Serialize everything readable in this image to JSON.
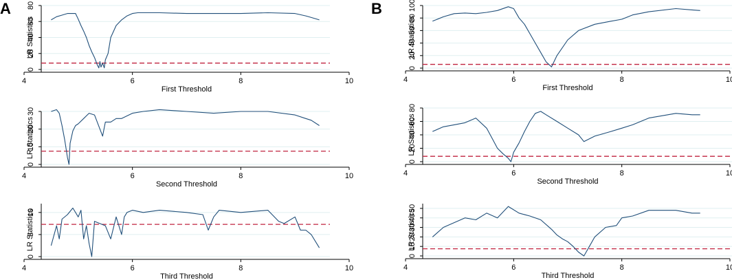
{
  "colors": {
    "series": "#1f4e79",
    "threshold_line": "#c0233f",
    "grid": "#dfeff0",
    "axis": "#000000"
  },
  "chart_data": [
    {
      "type": "line",
      "panel": "A",
      "xlabel": "First Threshold",
      "ylabel": "LR Statistics",
      "xlim": [
        4,
        10
      ],
      "ylim": [
        0,
        80
      ],
      "x_ticks": [
        "4",
        "6",
        "8",
        "10"
      ],
      "y_ticks": [
        "0",
        "20",
        "40",
        "60",
        "80"
      ],
      "critical_value": 8,
      "series": [
        {
          "name": "LR",
          "x": [
            4.5,
            4.6,
            4.7,
            4.8,
            4.95,
            5.0,
            5.05,
            5.1,
            5.15,
            5.2,
            5.25,
            5.3,
            5.35,
            5.38,
            5.4,
            5.42,
            5.45,
            5.48,
            5.5,
            5.55,
            5.6,
            5.7,
            5.8,
            5.9,
            6.0,
            6.1,
            6.2,
            6.5,
            7.0,
            7.5,
            8.0,
            8.5,
            9.0,
            9.2,
            9.3,
            9.45
          ],
          "y": [
            62,
            66,
            68,
            70,
            70,
            63,
            55,
            48,
            40,
            30,
            22,
            15,
            6,
            2,
            10,
            3,
            8,
            2,
            12,
            20,
            40,
            55,
            62,
            67,
            70,
            71,
            71,
            71,
            70,
            70,
            70,
            71,
            70,
            67,
            65,
            62
          ]
        }
      ]
    },
    {
      "type": "line",
      "panel": "B",
      "xlabel": "First Threshold",
      "ylabel": "LR Statistics",
      "xlim": [
        4,
        10
      ],
      "ylim": [
        0,
        100
      ],
      "x_ticks": [
        "4",
        "6",
        "8",
        "10"
      ],
      "y_ticks": [
        "0",
        "20",
        "40",
        "60",
        "80",
        "100"
      ],
      "critical_value": 6,
      "series": [
        {
          "name": "LR",
          "x": [
            4.5,
            4.7,
            4.9,
            5.1,
            5.3,
            5.5,
            5.7,
            5.9,
            6.0,
            6.1,
            6.2,
            6.3,
            6.4,
            6.5,
            6.6,
            6.7,
            6.8,
            7.0,
            7.2,
            7.5,
            7.8,
            8.0,
            8.2,
            8.5,
            9.0,
            9.3,
            9.45
          ],
          "y": [
            75,
            82,
            87,
            88,
            87,
            89,
            92,
            98,
            95,
            80,
            70,
            55,
            40,
            25,
            10,
            2,
            20,
            45,
            60,
            70,
            75,
            78,
            85,
            90,
            95,
            93,
            92
          ]
        }
      ]
    },
    {
      "type": "line",
      "panel": "A",
      "xlabel": "Second Threshold",
      "ylabel": "LR Statistics",
      "xlim": [
        4,
        10
      ],
      "ylim": [
        0,
        30
      ],
      "x_ticks": [
        "4",
        "6",
        "8",
        "10"
      ],
      "y_ticks": [
        "0",
        "10",
        "20",
        "30"
      ],
      "critical_value": 7.5,
      "series": [
        {
          "name": "LR",
          "x": [
            4.5,
            4.6,
            4.65,
            4.7,
            4.75,
            4.8,
            4.83,
            4.85,
            4.9,
            4.95,
            5.0,
            5.1,
            5.2,
            5.3,
            5.4,
            5.45,
            5.5,
            5.6,
            5.7,
            5.8,
            6.0,
            6.2,
            6.5,
            7.0,
            7.5,
            8.0,
            8.5,
            9.0,
            9.2,
            9.3,
            9.45
          ],
          "y": [
            30,
            31,
            29,
            22,
            14,
            4,
            0,
            12,
            19,
            22,
            23,
            26,
            29,
            28,
            20,
            16,
            24,
            24,
            26,
            26,
            29,
            30,
            31,
            30,
            29,
            30,
            30,
            28,
            26,
            25,
            22
          ]
        }
      ]
    },
    {
      "type": "line",
      "panel": "B",
      "xlabel": "Second Threshold",
      "ylabel": "LR Statistics",
      "xlim": [
        4,
        10
      ],
      "ylim": [
        0,
        80
      ],
      "x_ticks": [
        "4",
        "6",
        "8",
        "10"
      ],
      "y_ticks": [
        "0",
        "20",
        "40",
        "60",
        "80"
      ],
      "critical_value": 8,
      "series": [
        {
          "name": "LR",
          "x": [
            4.5,
            4.7,
            4.9,
            5.1,
            5.3,
            5.5,
            5.6,
            5.7,
            5.8,
            5.9,
            5.95,
            6.0,
            6.1,
            6.2,
            6.3,
            6.4,
            6.5,
            6.6,
            6.8,
            7.0,
            7.2,
            7.3,
            7.5,
            7.8,
            8.0,
            8.2,
            8.5,
            9.0,
            9.3,
            9.45
          ],
          "y": [
            45,
            52,
            55,
            58,
            65,
            50,
            35,
            20,
            12,
            5,
            0,
            14,
            28,
            45,
            60,
            72,
            75,
            70,
            60,
            50,
            40,
            30,
            38,
            45,
            50,
            55,
            65,
            72,
            70,
            70
          ]
        }
      ]
    },
    {
      "type": "line",
      "panel": "A",
      "xlabel": "Third Threshold",
      "ylabel": "LR Statistics",
      "xlim": [
        4,
        10
      ],
      "ylim": [
        0,
        12
      ],
      "x_ticks": [
        "4",
        "6",
        "8",
        "10"
      ],
      "y_ticks": [
        "0",
        "5",
        "10"
      ],
      "critical_value": 7.3,
      "series": [
        {
          "name": "LR",
          "x": [
            4.5,
            4.6,
            4.65,
            4.7,
            4.8,
            4.9,
            5.0,
            5.05,
            5.1,
            5.15,
            5.2,
            5.25,
            5.3,
            5.5,
            5.6,
            5.7,
            5.8,
            5.85,
            5.9,
            6.0,
            6.2,
            6.5,
            7.0,
            7.3,
            7.4,
            7.5,
            7.6,
            8.0,
            8.5,
            8.7,
            8.8,
            9.0,
            9.1,
            9.2,
            9.3,
            9.45
          ],
          "y": [
            2.5,
            7,
            4,
            8.5,
            9.5,
            11,
            9,
            10.5,
            4,
            7,
            3,
            0,
            8,
            7,
            4,
            9,
            5,
            9,
            10,
            10.5,
            10,
            10.5,
            10,
            9.5,
            6,
            9,
            10.5,
            10,
            10.5,
            8,
            7.5,
            9,
            6,
            6,
            5,
            2
          ]
        }
      ]
    },
    {
      "type": "line",
      "panel": "B",
      "xlabel": "Third Threshold",
      "ylabel": "LR Statistics",
      "xlim": [
        4,
        10
      ],
      "ylim": [
        0,
        55
      ],
      "x_ticks": [
        "4",
        "6",
        "8",
        "10"
      ],
      "y_ticks": [
        "0",
        "10",
        "20",
        "30",
        "40",
        "50"
      ],
      "critical_value": 7.5,
      "series": [
        {
          "name": "LR",
          "x": [
            4.5,
            4.7,
            4.9,
            5.1,
            5.3,
            5.5,
            5.7,
            5.9,
            6.1,
            6.3,
            6.5,
            6.7,
            6.8,
            6.9,
            7.0,
            7.1,
            7.2,
            7.3,
            7.4,
            7.5,
            7.7,
            7.9,
            8.0,
            8.2,
            8.5,
            9.0,
            9.3,
            9.45
          ],
          "y": [
            20,
            30,
            35,
            40,
            38,
            45,
            40,
            52,
            45,
            42,
            38,
            28,
            22,
            18,
            15,
            10,
            4,
            0,
            10,
            20,
            30,
            32,
            40,
            42,
            48,
            48,
            45,
            45
          ]
        }
      ]
    }
  ]
}
